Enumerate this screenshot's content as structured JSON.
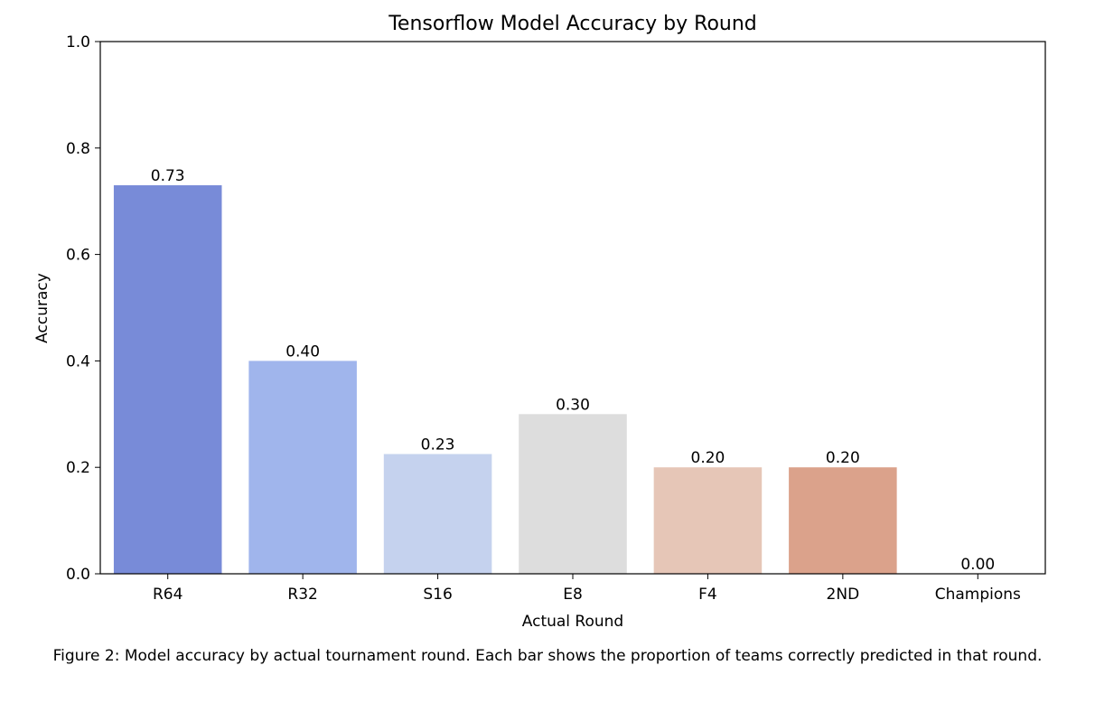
{
  "chart_data": {
    "type": "bar",
    "title": "Tensorflow Model Accuracy by Round",
    "xlabel": "Actual Round",
    "ylabel": "Accuracy",
    "categories": [
      "R64",
      "R32",
      "S16",
      "E8",
      "F4",
      "2ND",
      "Champions"
    ],
    "values": [
      0.73,
      0.4,
      0.225,
      0.3,
      0.2,
      0.2,
      0.0
    ],
    "value_labels": [
      "0.73",
      "0.40",
      "0.23",
      "0.30",
      "0.20",
      "0.20",
      "0.00"
    ],
    "colors": [
      "#788bd8",
      "#a0b5ec",
      "#c5d2ee",
      "#dddddd",
      "#e6c6b7",
      "#dba28b",
      "#c0c0c0"
    ],
    "ylim": [
      0,
      1.0
    ],
    "yticks": [
      "0.0",
      "0.2",
      "0.4",
      "0.6",
      "0.8",
      "1.0"
    ],
    "grid": false,
    "legend": "none"
  },
  "caption": "Figure 2: Model accuracy by actual tournament round. Each bar shows the proportion of teams correctly predicted in that round."
}
